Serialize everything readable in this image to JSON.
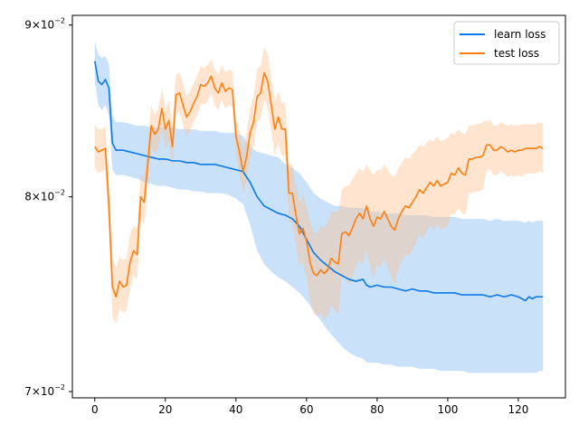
{
  "chart_data": {
    "type": "line",
    "title": "",
    "xlabel": "",
    "ylabel": "",
    "yscale": "log",
    "xlim": [
      -6.35,
      133.35
    ],
    "ylim": [
      0.0697,
      0.0906
    ],
    "grid": false,
    "legend_position": "top-right",
    "x_ticks": [
      0,
      20,
      40,
      60,
      80,
      100,
      120
    ],
    "x_tick_labels": [
      "0",
      "20",
      "40",
      "60",
      "80",
      "100",
      "120"
    ],
    "y_ticks": [
      0.07,
      0.08,
      0.09
    ],
    "y_tick_labels": [
      {
        "mantissa": "7",
        "base": "10",
        "exponent": "−2"
      },
      {
        "mantissa": "8",
        "base": "10",
        "exponent": "−2"
      },
      {
        "mantissa": "9",
        "base": "10",
        "exponent": "−2"
      }
    ],
    "series": [
      {
        "name": "learn loss",
        "color": "#1f77b4",
        "line_color": "#0a78e6",
        "band_color": "#89bdf5",
        "band_alpha": 0.45,
        "x": [
          0,
          1,
          2,
          3,
          4,
          5,
          6,
          8,
          10,
          12,
          14,
          16,
          18,
          20,
          22,
          24,
          26,
          28,
          30,
          32,
          34,
          36,
          38,
          40,
          42,
          44,
          46,
          48,
          50,
          52,
          54,
          56,
          58,
          60,
          62,
          64,
          66,
          68,
          70,
          72,
          74,
          76,
          77,
          78,
          80,
          82,
          84,
          86,
          88,
          90,
          92,
          94,
          96,
          98,
          100,
          102,
          104,
          106,
          108,
          110,
          112,
          114,
          116,
          118,
          120,
          122,
          123,
          124,
          125,
          126,
          127
        ],
        "y": [
          0.0878,
          0.0866,
          0.0864,
          0.0867,
          0.0862,
          0.083,
          0.0826,
          0.0826,
          0.0825,
          0.0824,
          0.0823,
          0.0822,
          0.0821,
          0.0821,
          0.082,
          0.082,
          0.0819,
          0.0819,
          0.0818,
          0.0818,
          0.0818,
          0.0817,
          0.0816,
          0.0815,
          0.0814,
          0.0808,
          0.08,
          0.0795,
          0.0793,
          0.0791,
          0.079,
          0.0788,
          0.0784,
          0.0777,
          0.077,
          0.0766,
          0.0763,
          0.076,
          0.0758,
          0.0756,
          0.0755,
          0.0756,
          0.0753,
          0.0752,
          0.0753,
          0.0752,
          0.0752,
          0.0751,
          0.075,
          0.0751,
          0.075,
          0.075,
          0.0749,
          0.0749,
          0.0749,
          0.0749,
          0.0748,
          0.0748,
          0.0748,
          0.0748,
          0.0747,
          0.0748,
          0.0747,
          0.0748,
          0.0747,
          0.0745,
          0.0747,
          0.0746,
          0.0747,
          0.0747,
          0.0747
        ],
        "y_upper": [
          0.089,
          0.0882,
          0.088,
          0.0881,
          0.0876,
          0.0846,
          0.0842,
          0.0842,
          0.0841,
          0.084,
          0.084,
          0.0839,
          0.0839,
          0.0839,
          0.0839,
          0.0838,
          0.0838,
          0.0838,
          0.0837,
          0.0837,
          0.0837,
          0.0836,
          0.0836,
          0.0836,
          0.0834,
          0.0828,
          0.0825,
          0.0824,
          0.0823,
          0.0822,
          0.0818,
          0.0816,
          0.0813,
          0.0808,
          0.0802,
          0.0799,
          0.0797,
          0.0795,
          0.0795,
          0.0794,
          0.0794,
          0.0794,
          0.0792,
          0.0792,
          0.0792,
          0.0791,
          0.0791,
          0.0791,
          0.079,
          0.079,
          0.079,
          0.079,
          0.0789,
          0.0789,
          0.0789,
          0.0789,
          0.0788,
          0.0788,
          0.0788,
          0.0788,
          0.0787,
          0.0788,
          0.0787,
          0.0787,
          0.0787,
          0.0786,
          0.0787,
          0.0786,
          0.0787,
          0.0787,
          0.0787
        ],
        "y_lower": [
          0.0866,
          0.0852,
          0.0849,
          0.0852,
          0.0846,
          0.0815,
          0.0812,
          0.0812,
          0.0811,
          0.081,
          0.0808,
          0.0807,
          0.0806,
          0.0806,
          0.0805,
          0.0804,
          0.0804,
          0.0803,
          0.0803,
          0.0802,
          0.0802,
          0.0802,
          0.0801,
          0.0799,
          0.0796,
          0.0785,
          0.0771,
          0.0764,
          0.076,
          0.0757,
          0.0755,
          0.0752,
          0.0749,
          0.0745,
          0.074,
          0.0735,
          0.073,
          0.0726,
          0.0722,
          0.0719,
          0.0717,
          0.0716,
          0.0714,
          0.0714,
          0.0714,
          0.0713,
          0.0713,
          0.0712,
          0.0712,
          0.0712,
          0.0711,
          0.0711,
          0.0711,
          0.071,
          0.071,
          0.071,
          0.071,
          0.0709,
          0.0709,
          0.0709,
          0.0709,
          0.0709,
          0.0709,
          0.0709,
          0.0709,
          0.0709,
          0.0709,
          0.0709,
          0.0709,
          0.071,
          0.071
        ]
      },
      {
        "name": "test loss",
        "color": "#ff7f0e",
        "line_color": "#ff7f0e",
        "band_color": "#ffbe8a",
        "band_alpha": 0.4,
        "x": [
          0,
          1,
          2,
          3,
          4,
          5,
          6,
          7,
          8,
          9,
          10,
          11,
          12,
          13,
          14,
          15,
          16,
          17,
          18,
          19,
          20,
          21,
          22,
          23,
          24,
          25,
          26,
          27,
          28,
          29,
          30,
          31,
          32,
          33,
          34,
          35,
          36,
          37,
          38,
          39,
          40,
          41,
          42,
          43,
          44,
          45,
          46,
          47,
          48,
          49,
          50,
          51,
          52,
          53,
          54,
          55,
          56,
          57,
          58,
          59,
          60,
          61,
          62,
          63,
          64,
          65,
          66,
          67,
          68,
          69,
          70,
          71,
          72,
          73,
          74,
          75,
          76,
          77,
          78,
          79,
          80,
          81,
          82,
          83,
          84,
          85,
          86,
          87,
          88,
          89,
          90,
          91,
          92,
          93,
          94,
          95,
          96,
          97,
          98,
          99,
          100,
          101,
          102,
          103,
          104,
          105,
          106,
          107,
          108,
          109,
          110,
          111,
          112,
          113,
          114,
          115,
          116,
          117,
          118,
          119,
          120,
          121,
          122,
          123,
          124,
          125,
          126,
          127
        ],
        "y": [
          0.0828,
          0.0825,
          0.0826,
          0.0827,
          0.0795,
          0.0752,
          0.0747,
          0.0755,
          0.0752,
          0.0753,
          0.0765,
          0.0771,
          0.0769,
          0.08,
          0.0797,
          0.0818,
          0.084,
          0.0835,
          0.0838,
          0.085,
          0.0838,
          0.0843,
          0.0828,
          0.0858,
          0.0859,
          0.0852,
          0.0845,
          0.0848,
          0.0853,
          0.0857,
          0.0864,
          0.0863,
          0.0865,
          0.0869,
          0.0862,
          0.0859,
          0.0865,
          0.086,
          0.0862,
          0.0861,
          0.0834,
          0.0825,
          0.0814,
          0.0822,
          0.0836,
          0.0842,
          0.0857,
          0.0859,
          0.0871,
          0.0866,
          0.0852,
          0.0838,
          0.0845,
          0.0838,
          0.0838,
          0.0802,
          0.0802,
          0.079,
          0.078,
          0.0783,
          0.0776,
          0.0765,
          0.0759,
          0.0758,
          0.0761,
          0.0759,
          0.0761,
          0.0767,
          0.0765,
          0.0764,
          0.078,
          0.0781,
          0.0779,
          0.0783,
          0.0788,
          0.0791,
          0.0788,
          0.0795,
          0.0788,
          0.0784,
          0.0789,
          0.0788,
          0.0792,
          0.0788,
          0.0784,
          0.0782,
          0.0788,
          0.0792,
          0.0795,
          0.0794,
          0.0797,
          0.08,
          0.0804,
          0.0802,
          0.0805,
          0.0808,
          0.0806,
          0.0809,
          0.0806,
          0.0807,
          0.0808,
          0.0813,
          0.0812,
          0.0816,
          0.0813,
          0.0812,
          0.0821,
          0.0821,
          0.0822,
          0.0822,
          0.0823,
          0.0829,
          0.0829,
          0.0826,
          0.0826,
          0.0828,
          0.0827,
          0.0825,
          0.0826,
          0.0825,
          0.0826,
          0.0826,
          0.0827,
          0.0827,
          0.0827,
          0.0827,
          0.0828,
          0.0827
        ],
        "y_upper": [
          0.0841,
          0.0838,
          0.0838,
          0.084,
          0.081,
          0.0768,
          0.0762,
          0.0768,
          0.0766,
          0.0767,
          0.078,
          0.0784,
          0.0783,
          0.0812,
          0.0811,
          0.083,
          0.0852,
          0.0846,
          0.085,
          0.0862,
          0.085,
          0.0855,
          0.0841,
          0.087,
          0.0871,
          0.0865,
          0.0857,
          0.086,
          0.0865,
          0.0869,
          0.0875,
          0.0874,
          0.0876,
          0.0879,
          0.0873,
          0.087,
          0.0876,
          0.0871,
          0.0873,
          0.0872,
          0.0845,
          0.0837,
          0.0827,
          0.0836,
          0.085,
          0.0857,
          0.0873,
          0.0875,
          0.0887,
          0.0882,
          0.0868,
          0.0854,
          0.086,
          0.0853,
          0.0853,
          0.0818,
          0.0818,
          0.0806,
          0.0797,
          0.0801,
          0.0795,
          0.0786,
          0.0781,
          0.078,
          0.0784,
          0.0783,
          0.0786,
          0.0792,
          0.0792,
          0.0792,
          0.0804,
          0.0806,
          0.0806,
          0.081,
          0.0813,
          0.0816,
          0.0814,
          0.0818,
          0.0815,
          0.0812,
          0.0815,
          0.0815,
          0.0818,
          0.0815,
          0.0812,
          0.0811,
          0.0816,
          0.0819,
          0.0822,
          0.0821,
          0.0824,
          0.0826,
          0.0829,
          0.0828,
          0.083,
          0.0832,
          0.0831,
          0.0834,
          0.0831,
          0.0832,
          0.0833,
          0.0836,
          0.0835,
          0.0838,
          0.0836,
          0.0835,
          0.084,
          0.084,
          0.0841,
          0.0841,
          0.0842,
          0.0843,
          0.0843,
          0.084,
          0.084,
          0.0842,
          0.0841,
          0.084,
          0.0841,
          0.084,
          0.084,
          0.0841,
          0.0841,
          0.0841,
          0.0841,
          0.0841,
          0.0842,
          0.0841
        ],
        "y_lower": [
          0.0816,
          0.0813,
          0.0814,
          0.0815,
          0.0781,
          0.0737,
          0.0733,
          0.0741,
          0.0739,
          0.074,
          0.0751,
          0.0758,
          0.0756,
          0.0788,
          0.0784,
          0.0806,
          0.0828,
          0.0824,
          0.0827,
          0.0838,
          0.0827,
          0.0831,
          0.0816,
          0.0846,
          0.0848,
          0.084,
          0.0834,
          0.0837,
          0.0842,
          0.0846,
          0.0853,
          0.0852,
          0.0854,
          0.0859,
          0.0852,
          0.0849,
          0.0855,
          0.085,
          0.0852,
          0.0851,
          0.0823,
          0.0813,
          0.0802,
          0.0808,
          0.0822,
          0.0828,
          0.0842,
          0.0844,
          0.0855,
          0.085,
          0.0837,
          0.0823,
          0.083,
          0.0823,
          0.0823,
          0.0786,
          0.0786,
          0.0774,
          0.0763,
          0.0765,
          0.0757,
          0.0745,
          0.0738,
          0.0737,
          0.0739,
          0.0736,
          0.0737,
          0.0743,
          0.074,
          0.0738,
          0.0757,
          0.0757,
          0.0753,
          0.0757,
          0.0763,
          0.0766,
          0.0763,
          0.0772,
          0.0762,
          0.0757,
          0.0764,
          0.0762,
          0.0767,
          0.0762,
          0.0757,
          0.0754,
          0.0761,
          0.0766,
          0.0769,
          0.0768,
          0.0771,
          0.0775,
          0.078,
          0.0777,
          0.0781,
          0.0785,
          0.0782,
          0.0785,
          0.0782,
          0.0783,
          0.0784,
          0.0791,
          0.079,
          0.0794,
          0.0791,
          0.079,
          0.0802,
          0.0802,
          0.0803,
          0.0803,
          0.0804,
          0.0815,
          0.0815,
          0.0812,
          0.0812,
          0.0814,
          0.0813,
          0.0811,
          0.0812,
          0.0811,
          0.0812,
          0.0811,
          0.0813,
          0.0813,
          0.0813,
          0.0813,
          0.0814,
          0.0813
        ]
      }
    ]
  }
}
